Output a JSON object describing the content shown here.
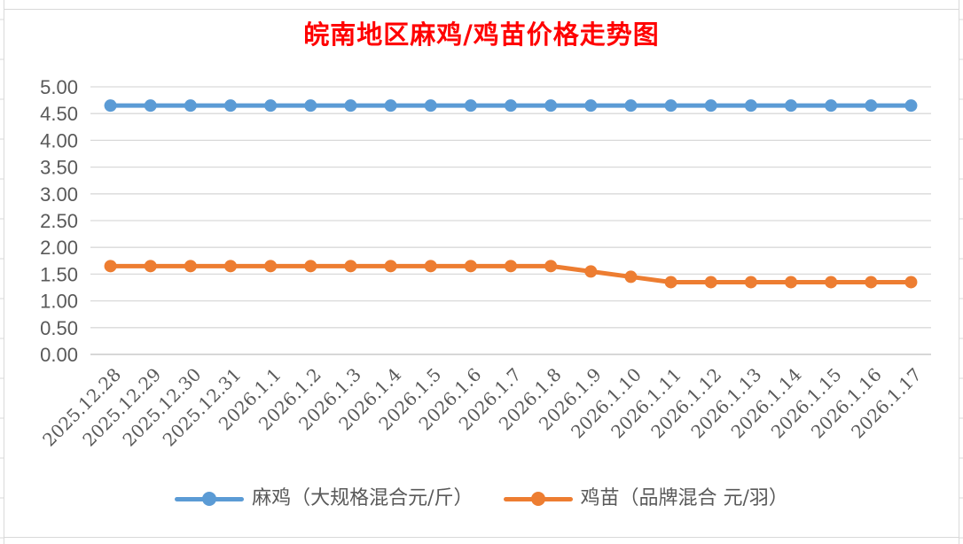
{
  "chart_data": {
    "type": "line",
    "title": "皖南地区麻鸡/鸡苗价格走势图",
    "title_color": "#FF0000",
    "categories": [
      "2025.12.28",
      "2025.12.29",
      "2025.12.30",
      "2025.12.31",
      "2026.1.1",
      "2026.1.2",
      "2026.1.3",
      "2026.1.4",
      "2026.1.5",
      "2026.1.6",
      "2026.1.7",
      "2026.1.8",
      "2026.1.9",
      "2026.1.10",
      "2026.1.11",
      "2026.1.12",
      "2026.1.13",
      "2026.1.14",
      "2026.1.15",
      "2026.1.16",
      "2026.1.17"
    ],
    "series": [
      {
        "name": "麻鸡（大规格混合元/斤）",
        "color": "#5B9BD5",
        "values": [
          4.65,
          4.65,
          4.65,
          4.65,
          4.65,
          4.65,
          4.65,
          4.65,
          4.65,
          4.65,
          4.65,
          4.65,
          4.65,
          4.65,
          4.65,
          4.65,
          4.65,
          4.65,
          4.65,
          4.65,
          4.65
        ]
      },
      {
        "name": "鸡苗（品牌混合 元/羽）",
        "color": "#ED7D31",
        "values": [
          1.65,
          1.65,
          1.65,
          1.65,
          1.65,
          1.65,
          1.65,
          1.65,
          1.65,
          1.65,
          1.65,
          1.65,
          1.55,
          1.45,
          1.35,
          1.35,
          1.35,
          1.35,
          1.35,
          1.35,
          1.35
        ]
      }
    ],
    "xlabel": "",
    "ylabel": "",
    "ylim": [
      0,
      5
    ],
    "ytick_step": 0.5,
    "ytick_decimals": 2,
    "ytick_labels": [
      "0.00",
      "0.50",
      "1.00",
      "1.50",
      "2.00",
      "2.50",
      "3.00",
      "3.50",
      "4.00",
      "4.50",
      "5.00"
    ],
    "grid": true,
    "gridline_color": "#D9D9D9",
    "axis_line_color": "#BFBFBF",
    "axis_label_color": "#595959",
    "legend_position": "bottom"
  }
}
